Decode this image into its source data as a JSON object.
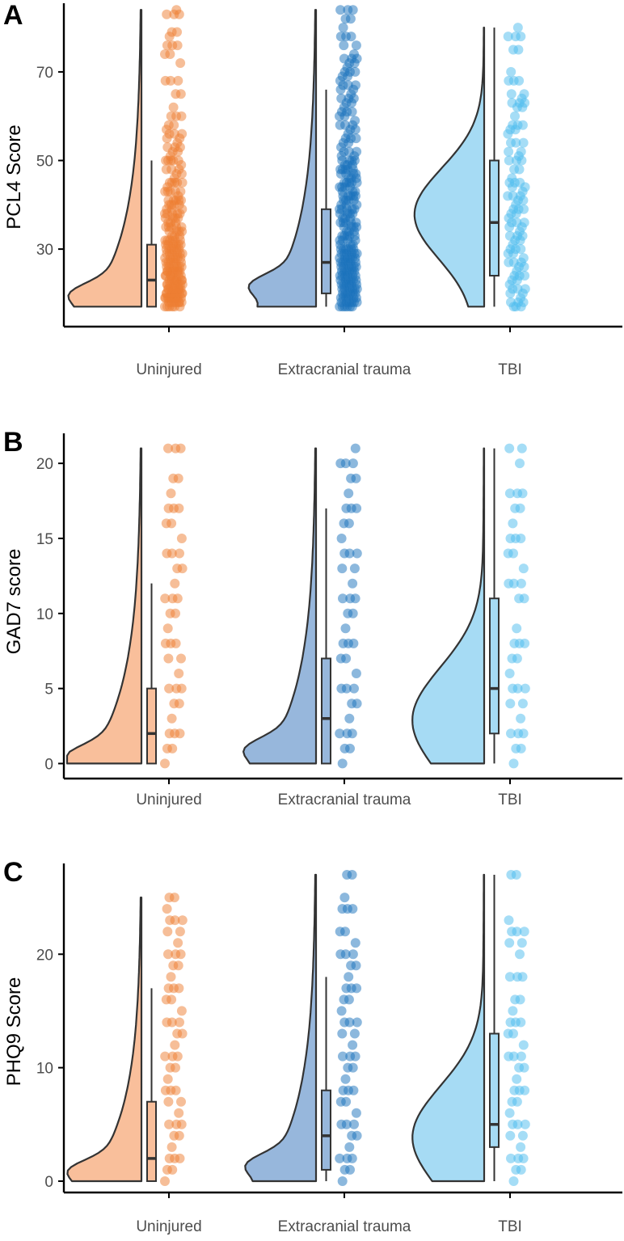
{
  "figure": {
    "categories": [
      "Uninjured",
      "Extracranial trauma",
      "TBI"
    ],
    "colors": {
      "uninjured_point": "#ee7d31",
      "uninjured_fill": "#f9bf9b",
      "extracranial_point": "#1a72bb",
      "extracranial_fill": "#97b7dc",
      "tbi_point": "#4cbcee",
      "tbi_fill": "#a6dbf4",
      "outline": "#333333",
      "axis": "#000000"
    }
  },
  "chart_data": [
    {
      "panel": "A",
      "type": "raincloud",
      "ylabel": "PCL4 Score",
      "xlabel": "",
      "categories": [
        "Uninjured",
        "Extracranial trauma",
        "TBI"
      ],
      "ylim": [
        12.5,
        85.5
      ],
      "yticks": [
        30,
        50,
        70
      ],
      "series": [
        {
          "name": "Uninjured",
          "box": {
            "min": 17,
            "q1": 17,
            "median": 23,
            "q3": 31,
            "whisker_max": 50
          },
          "density": {
            "range": [
              17,
              84
            ],
            "peak": 20,
            "skew": "right"
          },
          "points": [
            17,
            17,
            17,
            18,
            18,
            18,
            18,
            19,
            19,
            19,
            19,
            19,
            20,
            20,
            20,
            20,
            20,
            21,
            21,
            21,
            21,
            22,
            22,
            22,
            22,
            23,
            23,
            23,
            23,
            24,
            24,
            24,
            25,
            25,
            25,
            25,
            26,
            26,
            26,
            27,
            27,
            27,
            28,
            28,
            28,
            29,
            29,
            29,
            30,
            30,
            30,
            31,
            31,
            31,
            32,
            32,
            32,
            33,
            33,
            34,
            34,
            35,
            35,
            36,
            36,
            37,
            37,
            38,
            38,
            39,
            39,
            40,
            40,
            41,
            41,
            42,
            43,
            43,
            44,
            45,
            45,
            46,
            47,
            48,
            49,
            50,
            50,
            51,
            52,
            53,
            54,
            55,
            56,
            57,
            58,
            60,
            62,
            65,
            68,
            72,
            74,
            76,
            78,
            79,
            83,
            84
          ]
        },
        {
          "name": "Extracranial trauma",
          "box": {
            "min": 17,
            "q1": 20,
            "median": 27,
            "q3": 39,
            "whisker_max": 66
          },
          "density": {
            "range": [
              17,
              84
            ],
            "peak": 22,
            "skew": "right"
          },
          "points": [
            17,
            17,
            17,
            18,
            18,
            18,
            19,
            19,
            19,
            20,
            20,
            20,
            21,
            21,
            21,
            22,
            22,
            22,
            23,
            23,
            23,
            24,
            24,
            24,
            25,
            25,
            25,
            26,
            26,
            26,
            27,
            27,
            27,
            28,
            28,
            28,
            29,
            29,
            29,
            30,
            30,
            30,
            31,
            31,
            32,
            32,
            33,
            33,
            34,
            34,
            35,
            35,
            36,
            36,
            37,
            37,
            38,
            38,
            39,
            39,
            40,
            40,
            41,
            41,
            42,
            42,
            43,
            43,
            44,
            44,
            45,
            45,
            46,
            46,
            47,
            47,
            48,
            48,
            49,
            49,
            50,
            50,
            51,
            52,
            53,
            54,
            55,
            56,
            57,
            58,
            59,
            60,
            61,
            62,
            63,
            64,
            65,
            66,
            67,
            68,
            69,
            70,
            71,
            72,
            73,
            74,
            76,
            78,
            80,
            82,
            84
          ]
        },
        {
          "name": "TBI",
          "box": {
            "min": 17,
            "q1": 24,
            "median": 36,
            "q3": 50,
            "whisker_max": 80
          },
          "density": {
            "range": [
              17,
              80
            ],
            "peak": 38,
            "skew": "flat"
          },
          "points": [
            17,
            17,
            18,
            19,
            20,
            21,
            22,
            23,
            24,
            25,
            26,
            27,
            28,
            29,
            30,
            31,
            32,
            33,
            34,
            35,
            36,
            37,
            38,
            39,
            40,
            41,
            42,
            43,
            44,
            45,
            46,
            48,
            50,
            51,
            52,
            54,
            56,
            57,
            58,
            60,
            62,
            63,
            64,
            65,
            68,
            70,
            75,
            78,
            80
          ]
        }
      ]
    },
    {
      "panel": "B",
      "type": "raincloud",
      "ylabel": "GAD7 score",
      "xlabel": "",
      "categories": [
        "Uninjured",
        "Extracranial trauma",
        "TBI"
      ],
      "ylim": [
        -1,
        22
      ],
      "yticks": [
        0,
        5,
        10,
        15,
        20
      ],
      "series": [
        {
          "name": "Uninjured",
          "box": {
            "min": 0,
            "q1": 0,
            "median": 2,
            "q3": 5,
            "whisker_max": 12
          },
          "density": {
            "range": [
              0,
              21
            ],
            "peak": 0.5,
            "skew": "right"
          },
          "points": [
            0,
            1,
            2,
            3,
            4,
            5,
            6,
            7,
            8,
            9,
            10,
            11,
            12,
            13,
            14,
            15,
            16,
            17,
            18,
            19,
            21
          ]
        },
        {
          "name": "Extracranial trauma",
          "box": {
            "min": 0,
            "q1": 0,
            "median": 3,
            "q3": 7,
            "whisker_max": 17
          },
          "density": {
            "range": [
              0,
              21
            ],
            "peak": 1,
            "skew": "right"
          },
          "points": [
            0,
            1,
            2,
            3,
            4,
            5,
            6,
            7,
            8,
            9,
            10,
            11,
            12,
            13,
            14,
            15,
            16,
            17,
            18,
            19,
            20,
            21
          ]
        },
        {
          "name": "TBI",
          "box": {
            "min": 0,
            "q1": 2,
            "median": 5,
            "q3": 11,
            "whisker_max": 21
          },
          "density": {
            "range": [
              0,
              21
            ],
            "peak": 3,
            "skew": "flat"
          },
          "points": [
            0,
            1,
            2,
            3,
            4,
            5,
            6,
            7,
            8,
            9,
            11,
            12,
            13,
            14,
            15,
            16,
            17,
            18,
            20,
            21
          ]
        }
      ]
    },
    {
      "panel": "C",
      "type": "raincloud",
      "ylabel": "PHQ9 Score",
      "xlabel": "",
      "categories": [
        "Uninjured",
        "Extracranial trauma",
        "TBI"
      ],
      "ylim": [
        -1,
        28
      ],
      "yticks": [
        0,
        10,
        20
      ],
      "series": [
        {
          "name": "Uninjured",
          "box": {
            "min": 0,
            "q1": 0,
            "median": 2,
            "q3": 7,
            "whisker_max": 17
          },
          "density": {
            "range": [
              0,
              25
            ],
            "peak": 1,
            "skew": "right"
          },
          "points": [
            0,
            1,
            2,
            3,
            4,
            5,
            6,
            7,
            8,
            9,
            10,
            11,
            12,
            13,
            14,
            15,
            16,
            17,
            18,
            19,
            20,
            21,
            22,
            23,
            24,
            25
          ]
        },
        {
          "name": "Extracranial trauma",
          "box": {
            "min": 0,
            "q1": 1,
            "median": 4,
            "q3": 8,
            "whisker_max": 18
          },
          "density": {
            "range": [
              0,
              27
            ],
            "peak": 1.5,
            "skew": "right"
          },
          "points": [
            0,
            1,
            2,
            3,
            4,
            5,
            6,
            7,
            8,
            9,
            10,
            11,
            12,
            13,
            14,
            15,
            16,
            17,
            18,
            19,
            20,
            21,
            22,
            24,
            25,
            27
          ]
        },
        {
          "name": "TBI",
          "box": {
            "min": 0,
            "q1": 3,
            "median": 5,
            "q3": 13,
            "whisker_max": 27
          },
          "density": {
            "range": [
              0,
              27
            ],
            "peak": 4,
            "skew": "flat"
          },
          "points": [
            0,
            1,
            2,
            3,
            4,
            5,
            6,
            7,
            8,
            9,
            10,
            11,
            12,
            13,
            14,
            15,
            16,
            18,
            20,
            21,
            22,
            23,
            27
          ]
        }
      ]
    }
  ]
}
